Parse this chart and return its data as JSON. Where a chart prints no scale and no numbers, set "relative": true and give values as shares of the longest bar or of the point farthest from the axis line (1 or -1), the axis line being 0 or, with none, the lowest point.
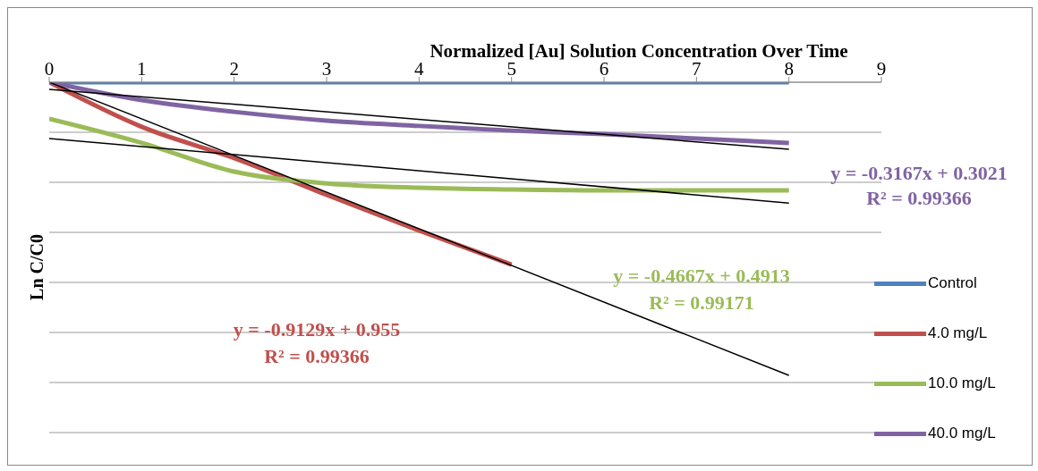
{
  "chart_data": {
    "type": "line",
    "title": "Normalized [Au] Solution Concentration Over Time",
    "ylabel": "Ln C/C0",
    "relative": true,
    "xlim": [
      0,
      9
    ],
    "xticks": [
      0,
      1,
      2,
      3,
      4,
      5,
      6,
      7,
      8,
      9
    ],
    "grid": "y",
    "legend": "right",
    "marker": "none",
    "line_style": "solid",
    "series": [
      {
        "name": "Control",
        "color": "#4f81bd",
        "x": [
          0,
          1,
          2,
          3,
          4,
          5,
          6,
          7,
          8
        ],
        "values": [
          0,
          0,
          0,
          0,
          0,
          0,
          0,
          0,
          0
        ]
      },
      {
        "name": "4.0 mg/L",
        "color": "#c0504d",
        "x": [
          0,
          1,
          2,
          3,
          4,
          5
        ],
        "values": [
          0,
          -0.152,
          -0.259,
          -0.384,
          -0.506,
          -0.622
        ]
      },
      {
        "name": "10.0 mg/L",
        "color": "#9bbb59",
        "x": [
          0,
          1,
          2,
          3,
          4,
          5,
          6,
          7,
          8
        ],
        "values": [
          -0.125,
          -0.207,
          -0.305,
          -0.345,
          -0.36,
          -0.366,
          -0.369,
          -0.369,
          -0.369
        ]
      },
      {
        "name": "40.0 mg/L",
        "color": "#8064a2",
        "x": [
          0,
          1,
          2,
          3,
          4,
          5,
          6,
          7,
          8
        ],
        "values": [
          0,
          -0.061,
          -0.101,
          -0.131,
          -0.149,
          -0.165,
          -0.177,
          -0.192,
          -0.207
        ]
      },
      {
        "color": "#000000",
        "x": [
          0,
          8
        ],
        "values": [
          0,
          -1
        ]
      },
      {
        "color": "#000000",
        "x": [
          0,
          8
        ],
        "values": [
          -0.192,
          -0.412
        ]
      },
      {
        "color": "#000000",
        "x": [
          0,
          8
        ],
        "values": [
          -0.024,
          -0.229
        ]
      }
    ],
    "annotations": [
      "y = -0.3167x + 0.3021",
      "R² = 0.99366",
      "y = -0.4667x + 0.4913",
      "R² = 0.99171",
      "y = -0.9129x + 0.955",
      "R² = 0.99366"
    ]
  }
}
